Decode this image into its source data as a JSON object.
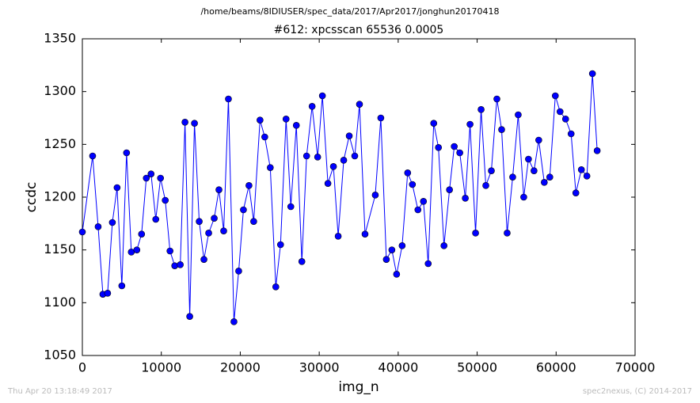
{
  "header": "/home/beams/8IDIUSER/spec_data/2017/Apr2017/jonghun20170418",
  "footer_left": "Thu Apr 20 13:18:49 2017",
  "footer_right": "spec2nexus, (C) 2014-2017",
  "chart_data": {
    "type": "line",
    "title": "#612: xpcsscan 65536 0.0005",
    "xlabel": "img_n",
    "ylabel": "ccdc",
    "color": "#0000ff",
    "x": [
      0,
      1300,
      2000,
      2600,
      3200,
      3800,
      4400,
      5000,
      5600,
      6200,
      6900,
      7500,
      8100,
      8700,
      9300,
      9900,
      10500,
      11100,
      11700,
      12400,
      13000,
      13600,
      14200,
      14800,
      15400,
      16000,
      16700,
      17300,
      17900,
      18500,
      19200,
      19800,
      20400,
      21100,
      21700,
      22500,
      23100,
      23800,
      24500,
      25100,
      25800,
      26400,
      27100,
      27800,
      28400,
      29100,
      29800,
      30400,
      31100,
      31800,
      32400,
      33100,
      33800,
      34500,
      35100,
      35800,
      37100,
      37800,
      38500,
      39200,
      39800,
      40500,
      41200,
      41800,
      42500,
      43200,
      43800,
      44500,
      45100,
      45800,
      46500,
      47100,
      47800,
      48500,
      49100,
      49800,
      50500,
      51100,
      51800,
      52500,
      53100,
      53800,
      54500,
      55200,
      55900,
      56500,
      57200,
      57800,
      58500,
      59200,
      59900,
      60500,
      61200,
      61900,
      62500,
      63200,
      63900,
      64600,
      65200
    ],
    "values": [
      1167,
      1239,
      1172,
      1108,
      1109,
      1176,
      1209,
      1116,
      1242,
      1148,
      1150,
      1165,
      1218,
      1222,
      1179,
      1218,
      1197,
      1149,
      1135,
      1136,
      1271,
      1087,
      1270,
      1177,
      1141,
      1166,
      1180,
      1207,
      1168,
      1293,
      1082,
      1130,
      1188,
      1211,
      1177,
      1273,
      1257,
      1228,
      1115,
      1155,
      1274,
      1191,
      1268,
      1139,
      1239,
      1286,
      1238,
      1296,
      1213,
      1229,
      1163,
      1235,
      1258,
      1239,
      1288,
      1165,
      1202,
      1275,
      1141,
      1150,
      1127,
      1154,
      1223,
      1212,
      1188,
      1196,
      1137,
      1270,
      1247,
      1154,
      1207,
      1248,
      1242,
      1199,
      1269,
      1166,
      1283,
      1211,
      1225,
      1293,
      1264,
      1166,
      1219,
      1278,
      1200,
      1236,
      1225,
      1254,
      1214,
      1219,
      1296,
      1281,
      1274,
      1260,
      1204,
      1226,
      1220,
      1317,
      1244
    ],
    "xlim": [
      0,
      70000
    ],
    "xticks": [
      0,
      10000,
      20000,
      30000,
      40000,
      50000,
      60000,
      70000
    ],
    "ylim": [
      1050,
      1350
    ],
    "yticks": [
      1050,
      1100,
      1150,
      1200,
      1250,
      1300,
      1350
    ]
  }
}
